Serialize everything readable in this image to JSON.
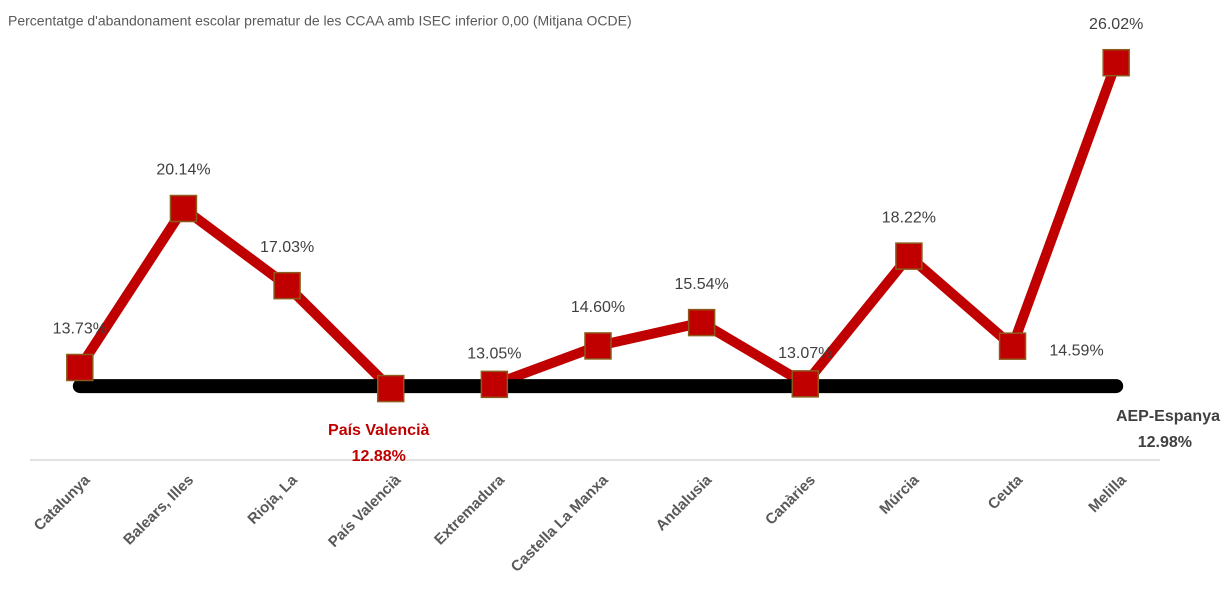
{
  "chart_data": {
    "type": "line",
    "title": "Percentatge d'abandonament escolar prematur de les CCAA amb ISEC inferior  0,00 (Mitjana OCDE)",
    "categories": [
      "Catalunya",
      "Balears, Illes",
      "Rioja, La",
      "País Valencià",
      "Extremadura",
      "Castella La Manxa",
      "Andalusia",
      "Canàries",
      "Múrcia",
      "Ceuta",
      "Melilla"
    ],
    "series": [
      {
        "name": "País Valencià",
        "color": "#c00000",
        "values": [
          13.73,
          20.14,
          17.03,
          12.88,
          13.05,
          14.6,
          15.54,
          13.07,
          18.22,
          14.59,
          26.02
        ],
        "value_labels": [
          "13.73%",
          "20.14%",
          "17.03%",
          "12.88%",
          "13.05%",
          "14.60%",
          "15.54%",
          "13.07%",
          "18.22%",
          "14.59%",
          "26.02%"
        ]
      }
    ],
    "reference": {
      "name": "AEP-Espanya",
      "value": 12.98,
      "value_label": "12.98%",
      "color": "#000000"
    },
    "annotation": "País Valencià",
    "ylim": [
      10,
      28
    ]
  }
}
